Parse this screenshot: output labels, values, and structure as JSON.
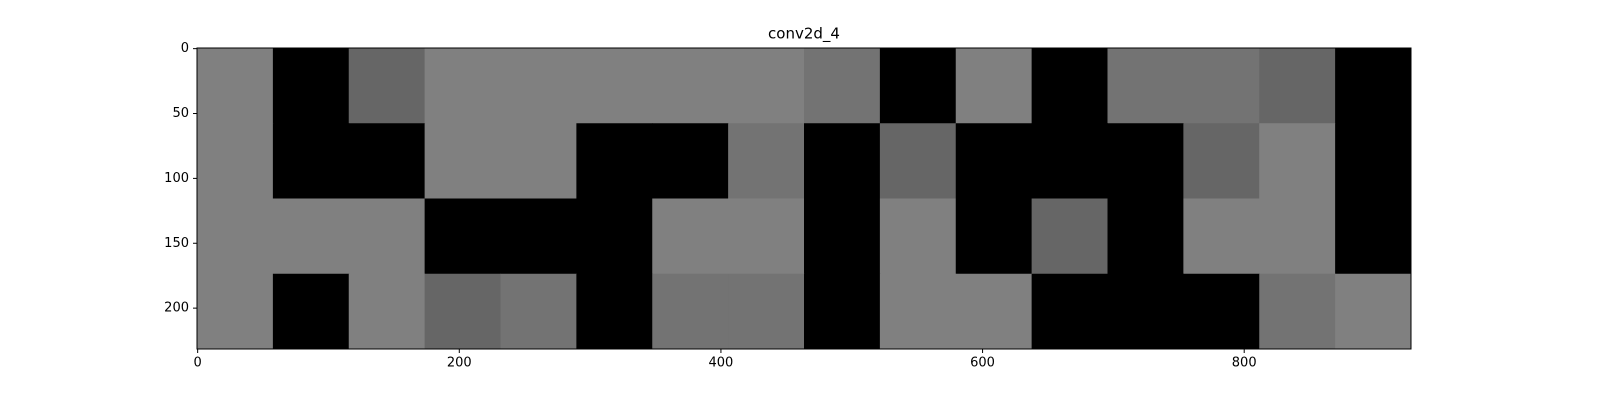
{
  "chart_data": {
    "type": "image",
    "title": "conv2d_4",
    "xlim": [
      -0.5,
      927.5
    ],
    "ylim": [
      231.5,
      -0.5
    ],
    "xticks": [
      0,
      200,
      400,
      600,
      800
    ],
    "yticks": [
      0,
      50,
      100,
      150,
      200
    ],
    "values": [
      [
        0.5,
        0,
        0.4,
        0.5,
        0.5,
        0.5,
        0.5,
        0.5,
        0.45,
        0,
        0.5,
        0,
        0.45,
        0.45,
        0.4,
        0
      ],
      [
        0.5,
        0,
        0,
        0.5,
        0.5,
        0,
        0,
        0.45,
        0,
        0.4,
        0,
        0,
        0,
        0.4,
        0.5,
        0
      ],
      [
        0.5,
        0.5,
        0.5,
        0,
        0,
        0,
        0.5,
        0.5,
        0,
        0.5,
        0,
        0.4,
        0,
        0.5,
        0.5,
        0
      ],
      [
        0.5,
        0,
        0.5,
        0.4,
        0.45,
        0,
        0.45,
        0.45,
        0,
        0.5,
        0.5,
        0,
        0,
        0,
        0.45,
        0.5
      ]
    ]
  }
}
